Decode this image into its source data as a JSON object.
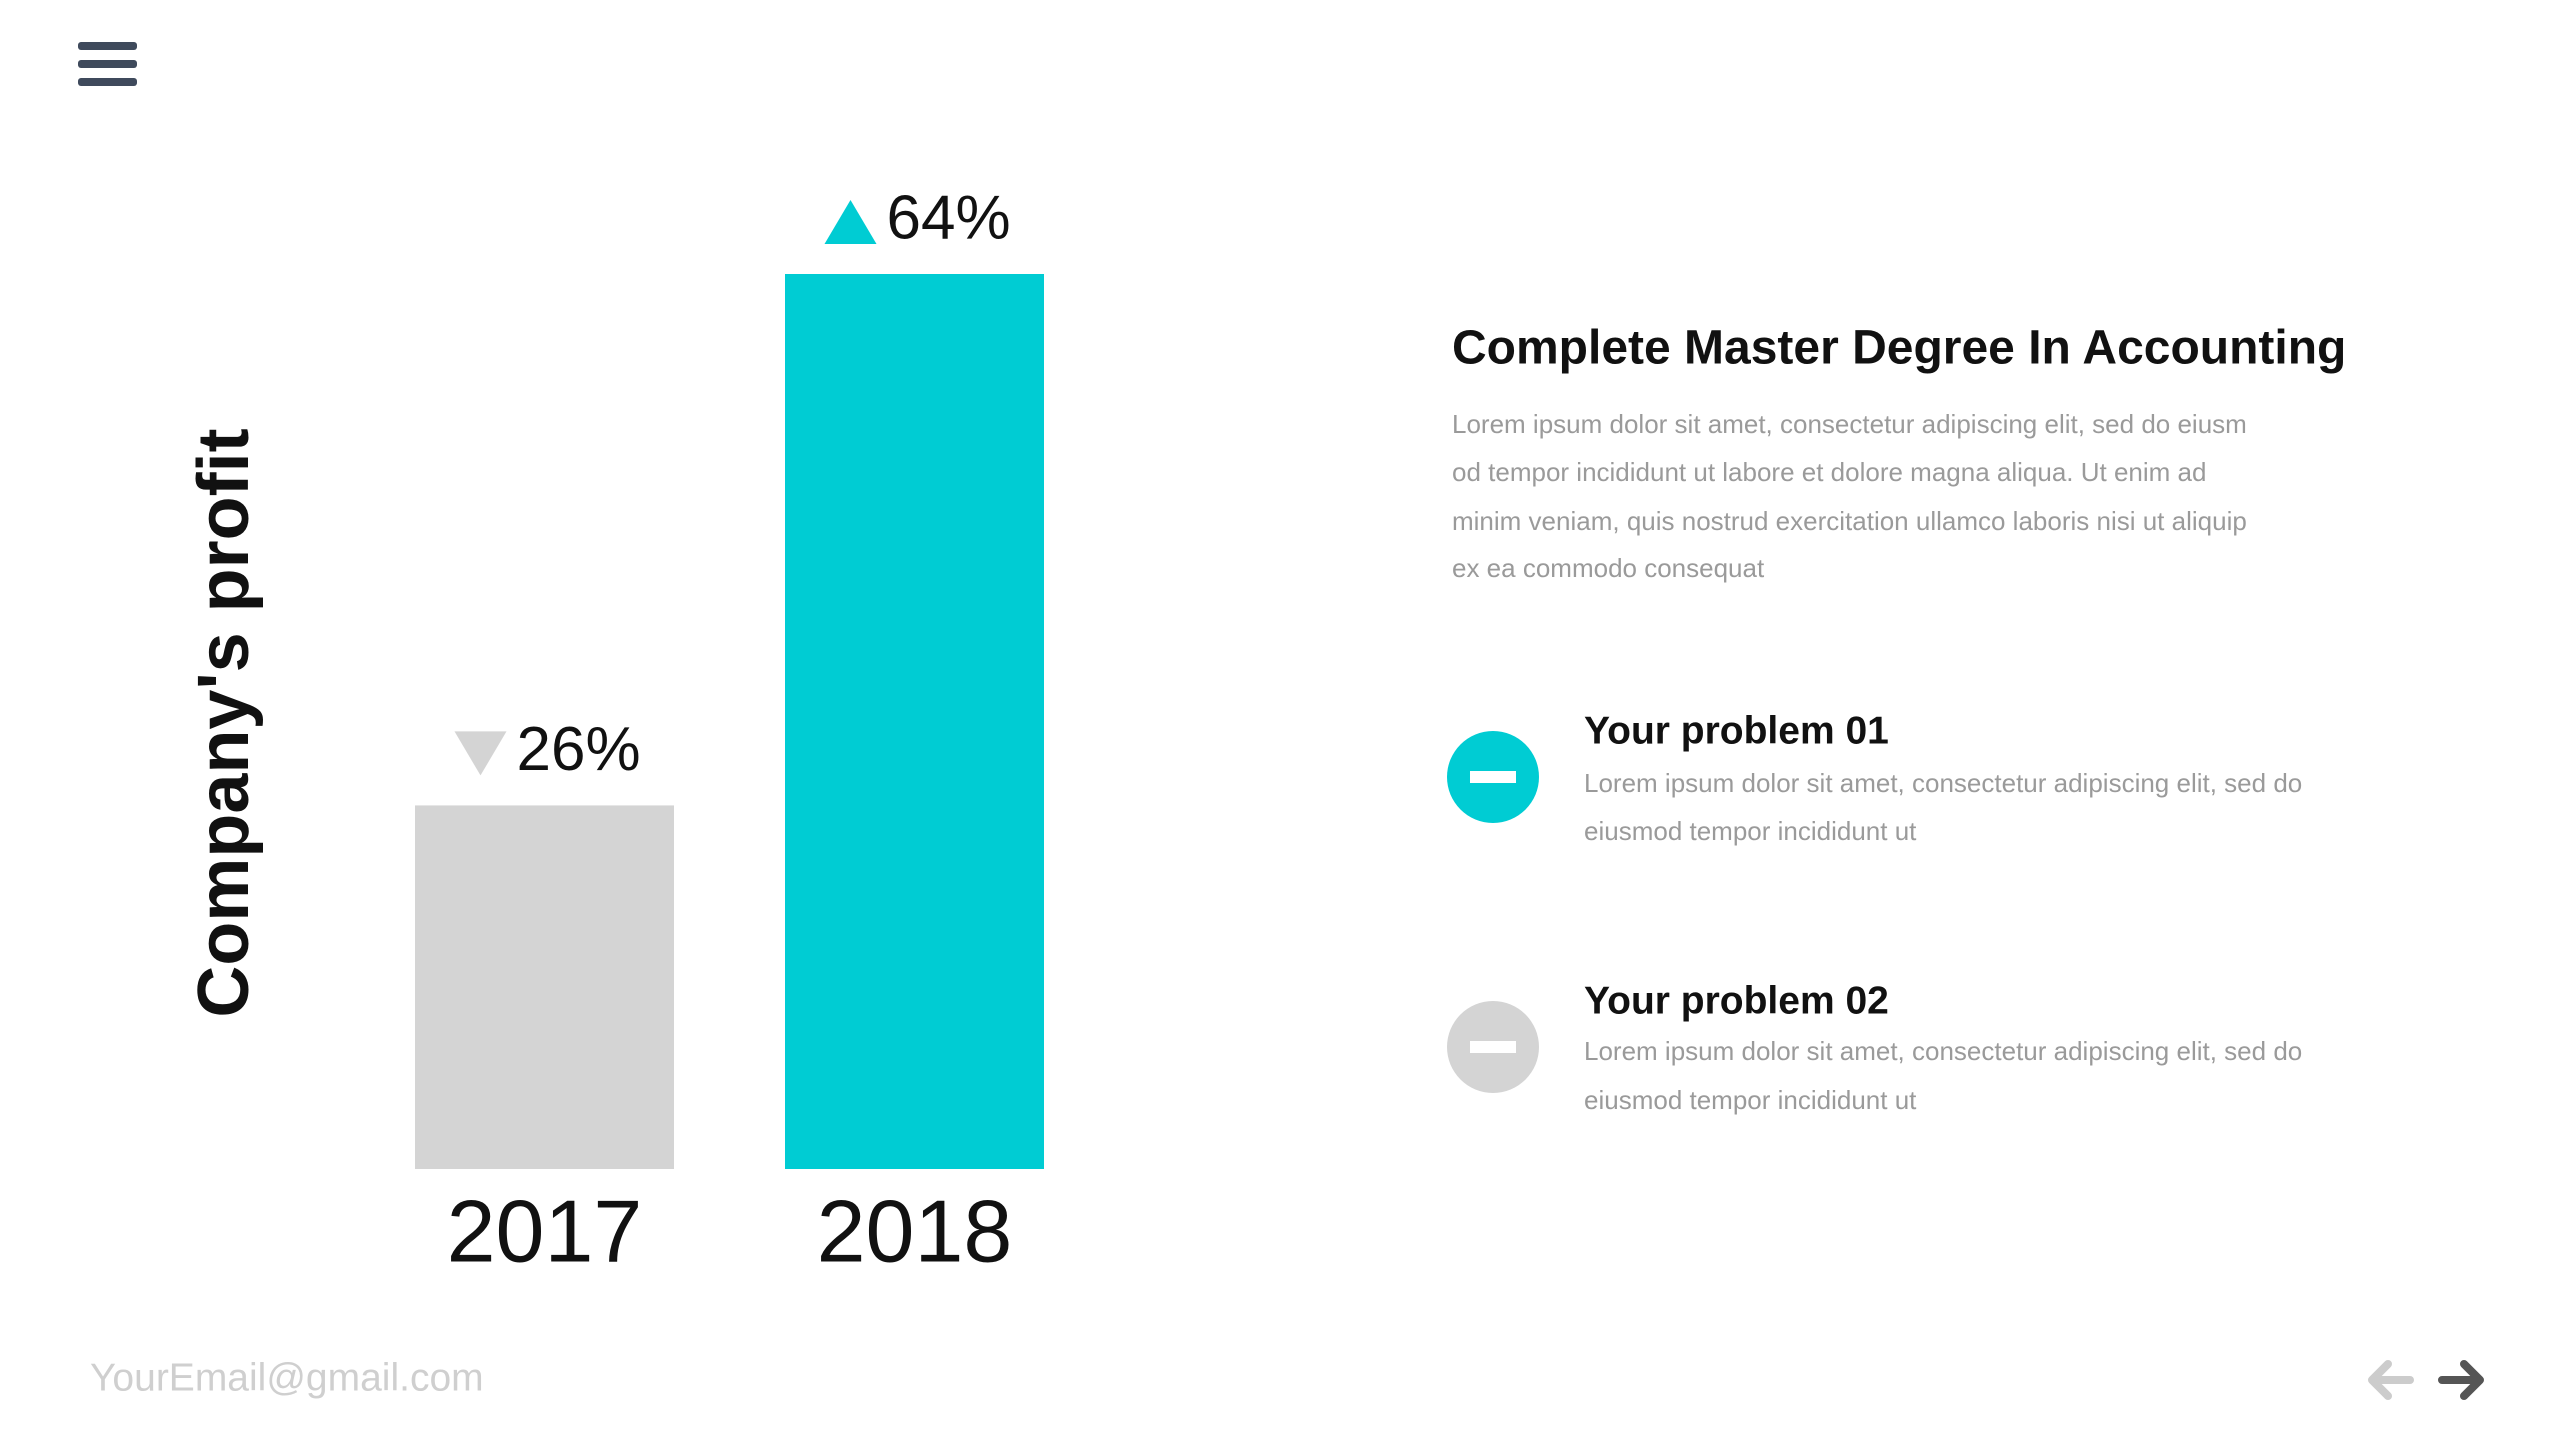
{
  "chart_data": {
    "type": "bar",
    "ylabel": "Company's profit",
    "categories": [
      "2017",
      "2018"
    ],
    "values": [
      26,
      64
    ],
    "value_labels": [
      "26%",
      "64%"
    ],
    "colors": [
      "#d4d4d4",
      "#00ccd3"
    ]
  },
  "header": {
    "heading": "Complete Master Degree In Accounting",
    "body_lines": [
      "Lorem ipsum dolor sit amet, consectetur adipiscing elit, sed do eiusm",
      "od tempor incididunt ut labore et dolore magna aliqua. Ut enim ad",
      "minim veniam, quis nostrud exercitation ullamco laboris nisi ut aliquip",
      "ex ea commodo consequat"
    ]
  },
  "problems": [
    {
      "title": "Your problem 01",
      "lines": [
        "Lorem ipsum dolor sit amet, consectetur adipiscing elit, sed do",
        "eiusmod tempor incididunt ut"
      ]
    },
    {
      "title": "Your problem 02",
      "lines": [
        "Lorem ipsum dolor sit amet, consectetur adipiscing elit, sed do",
        "eiusmod tempor incididunt ut"
      ]
    }
  ],
  "footer": {
    "email": "YourEmail@gmail.com"
  }
}
